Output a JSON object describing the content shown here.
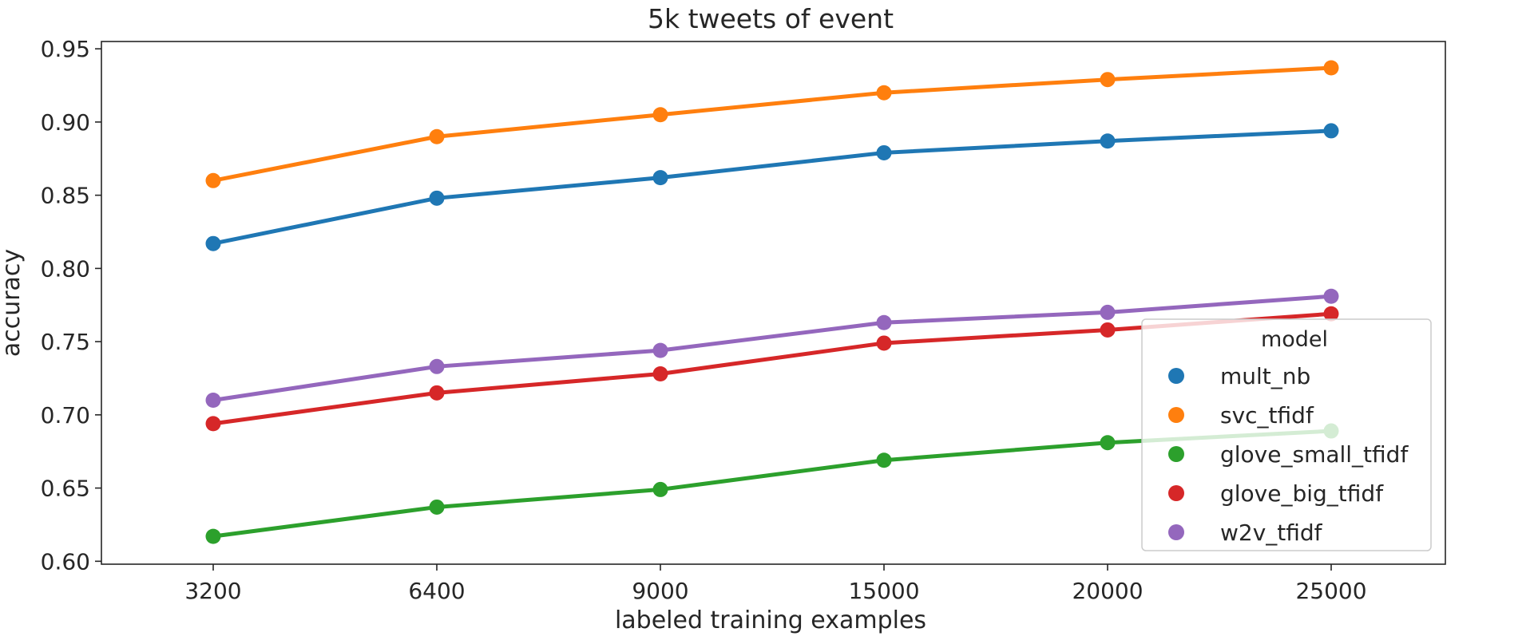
{
  "chart_data": {
    "type": "line",
    "title": "5k tweets of event",
    "xlabel": "labeled training examples",
    "ylabel": "accuracy",
    "categories": [
      "3200",
      "6400",
      "9000",
      "15000",
      "20000",
      "25000"
    ],
    "ylim": [
      0.598,
      0.955
    ],
    "yticks": [
      "0.60",
      "0.65",
      "0.70",
      "0.75",
      "0.80",
      "0.85",
      "0.90",
      "0.95"
    ],
    "ytick_values": [
      0.6,
      0.65,
      0.7,
      0.75,
      0.8,
      0.85,
      0.9,
      0.95
    ],
    "grid": false,
    "legend": {
      "title": "model",
      "placement": "lower right"
    },
    "series": [
      {
        "name": "mult_nb",
        "color": "#1f77b4",
        "values": [
          0.817,
          0.848,
          0.862,
          0.879,
          0.887,
          0.894
        ]
      },
      {
        "name": "svc_tfidf",
        "color": "#ff7f0e",
        "values": [
          0.86,
          0.89,
          0.905,
          0.92,
          0.929,
          0.937
        ]
      },
      {
        "name": "glove_small_tfidf",
        "color": "#2ca02c",
        "values": [
          0.617,
          0.637,
          0.649,
          0.669,
          0.681,
          0.689
        ]
      },
      {
        "name": "glove_big_tfidf",
        "color": "#d62728",
        "values": [
          0.694,
          0.715,
          0.728,
          0.749,
          0.758,
          0.769
        ]
      },
      {
        "name": "w2v_tfidf",
        "color": "#9467bd",
        "values": [
          0.71,
          0.733,
          0.744,
          0.763,
          0.77,
          0.781
        ]
      }
    ]
  }
}
